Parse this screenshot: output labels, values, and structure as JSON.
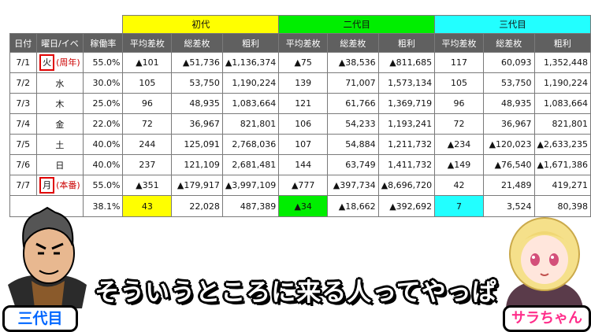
{
  "groups": [
    {
      "label": "初代",
      "color": "#ffff00"
    },
    {
      "label": "二代目",
      "color": "#00ee00"
    },
    {
      "label": "三代目",
      "color": "#22ffff"
    }
  ],
  "headers": [
    "日付",
    "曜日/イベ",
    "稼働率",
    "平均差枚",
    "総差枚",
    "粗利",
    "平均差枚",
    "総差枚",
    "粗利",
    "平均差枚",
    "総差枚",
    "粗利"
  ],
  "rows": [
    {
      "date": "7/1",
      "day": "火",
      "event": "(周年)",
      "boxed": true,
      "rate": "55.0%",
      "vals": [
        "▲101",
        "▲51,736",
        "▲1,136,374",
        "▲75",
        "▲38,536",
        "▲811,685",
        "117",
        "60,093",
        "1,352,448"
      ]
    },
    {
      "date": "7/2",
      "day": "水",
      "event": "",
      "boxed": false,
      "rate": "30.0%",
      "vals": [
        "105",
        "53,750",
        "1,190,224",
        "139",
        "71,007",
        "1,573,134",
        "105",
        "53,750",
        "1,190,224"
      ]
    },
    {
      "date": "7/3",
      "day": "木",
      "event": "",
      "boxed": false,
      "rate": "25.0%",
      "vals": [
        "96",
        "48,935",
        "1,083,664",
        "121",
        "61,766",
        "1,369,719",
        "96",
        "48,935",
        "1,083,664"
      ]
    },
    {
      "date": "7/4",
      "day": "金",
      "event": "",
      "boxed": false,
      "rate": "22.0%",
      "vals": [
        "72",
        "36,967",
        "821,801",
        "106",
        "54,233",
        "1,193,241",
        "72",
        "36,967",
        "821,801"
      ]
    },
    {
      "date": "7/5",
      "day": "土",
      "event": "",
      "boxed": false,
      "rate": "40.0%",
      "vals": [
        "244",
        "125,091",
        "2,768,036",
        "107",
        "54,884",
        "1,211,732",
        "▲234",
        "▲120,023",
        "▲2,633,235"
      ]
    },
    {
      "date": "7/6",
      "day": "日",
      "event": "",
      "boxed": false,
      "rate": "40.0%",
      "vals": [
        "237",
        "121,109",
        "2,681,481",
        "144",
        "63,749",
        "1,411,732",
        "▲149",
        "▲76,540",
        "▲1,671,386"
      ]
    },
    {
      "date": "7/7",
      "day": "月",
      "event": "(本番)",
      "boxed": true,
      "rate": "55.0%",
      "vals": [
        "▲351",
        "▲179,917",
        "▲3,997,109",
        "▲777",
        "▲397,734",
        "▲8,696,720",
        "42",
        "21,489",
        "419,271"
      ]
    }
  ],
  "total": {
    "rate": "38.1%",
    "vals": [
      "43",
      "22,028",
      "487,389",
      "▲34",
      "▲18,662",
      "▲392,692",
      "7",
      "3,524",
      "80,398"
    ]
  },
  "caption": "そういうところに来る人ってやっぱ",
  "left_name": "三代目",
  "right_name": "サラちゃん"
}
